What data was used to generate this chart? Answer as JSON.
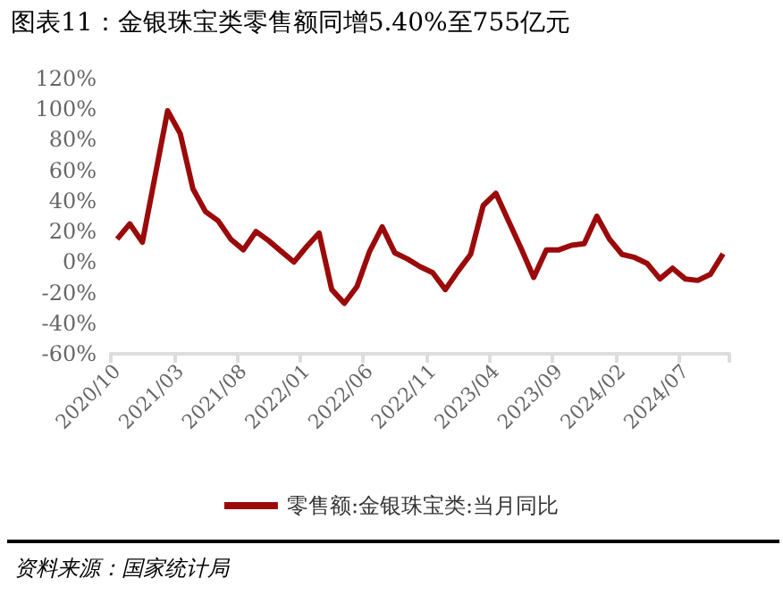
{
  "chart_data": {
    "type": "line",
    "title": "图表11：金银珠宝类零售额同增5.40%至755亿元",
    "categories": [
      "2020/10",
      null,
      null,
      null,
      null,
      "2021/03",
      null,
      null,
      null,
      null,
      "2021/08",
      null,
      null,
      null,
      null,
      "2022/01",
      null,
      null,
      null,
      null,
      "2022/06",
      null,
      null,
      null,
      null,
      "2022/11",
      null,
      null,
      null,
      null,
      "2023/04",
      null,
      null,
      null,
      null,
      "2023/09",
      null,
      null,
      null,
      null,
      "2024/02",
      null,
      null,
      null,
      null,
      "2024/07",
      null,
      null,
      null
    ],
    "series": [
      {
        "name": "零售额:金银珠宝类:当月同比",
        "color": "#9b0a0a",
        "values": [
          15,
          25,
          13,
          56,
          99,
          84,
          48,
          33,
          27,
          15,
          8,
          20,
          14,
          7,
          0,
          10,
          19,
          -18,
          -27,
          -16,
          7,
          23,
          6,
          2,
          -3,
          -7,
          -18,
          -6,
          5,
          37,
          45,
          27,
          9,
          -10,
          8,
          8,
          11,
          12,
          30,
          15,
          5,
          3,
          -1,
          -11,
          -4,
          -11,
          -12,
          -8,
          5.4
        ]
      }
    ],
    "ylim": [
      -60,
      120
    ],
    "yticks": [
      {
        "value": -60,
        "label": "-60%"
      },
      {
        "value": -40,
        "label": "-40%"
      },
      {
        "value": -20,
        "label": "-20%"
      },
      {
        "value": 0,
        "label": "0%"
      },
      {
        "value": 20,
        "label": "20%"
      },
      {
        "value": 40,
        "label": "40%"
      },
      {
        "value": 60,
        "label": "60%"
      },
      {
        "value": 80,
        "label": "80%"
      },
      {
        "value": 100,
        "label": "100%"
      },
      {
        "value": 120,
        "label": "120%"
      }
    ],
    "grid": false,
    "legend": "bottom",
    "marker": "none",
    "line_style": "solid",
    "annotations": [
      "资料来源：国家统计局"
    ]
  }
}
